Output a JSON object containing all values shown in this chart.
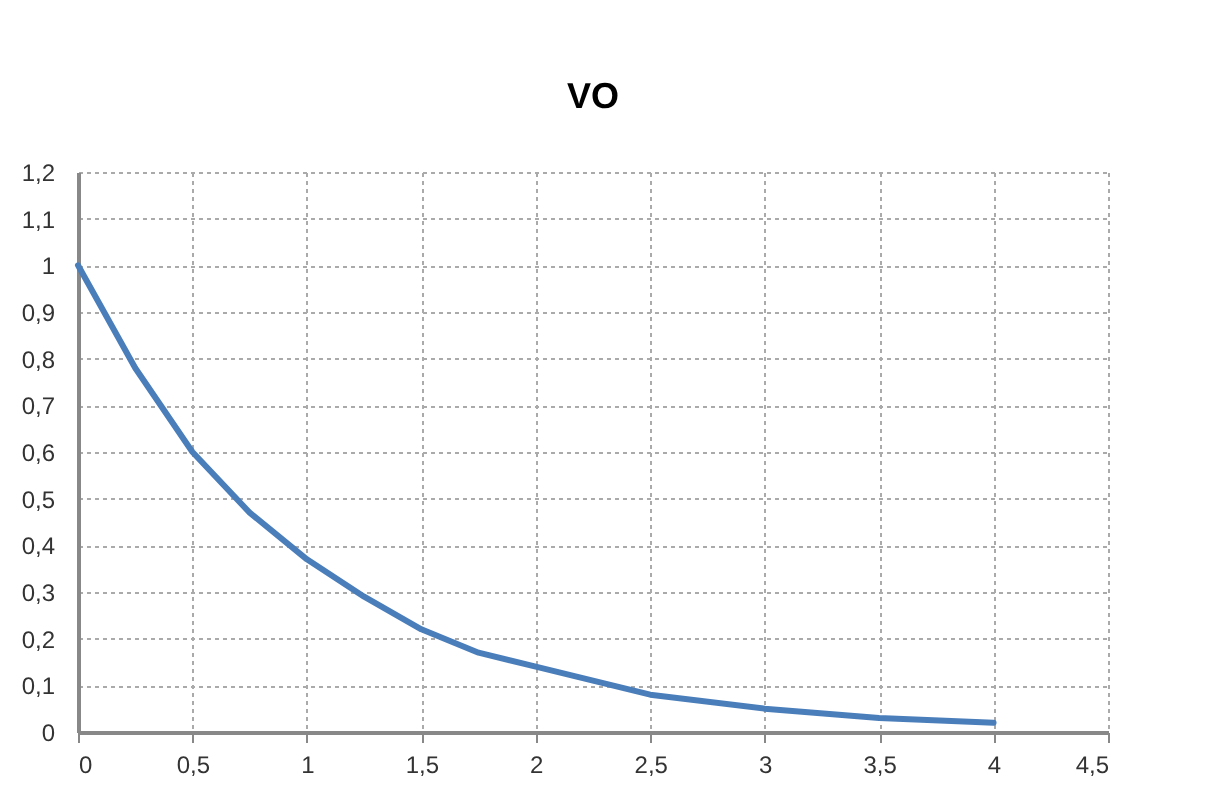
{
  "chart_data": {
    "type": "line",
    "title": "VO",
    "x": [
      0,
      0.25,
      0.5,
      0.75,
      1,
      1.25,
      1.5,
      1.75,
      2,
      2.5,
      3,
      3.5,
      4
    ],
    "series": [
      {
        "color": "#4a7ebb",
        "values": [
          1,
          0.78,
          0.6,
          0.47,
          0.37,
          0.29,
          0.22,
          0.17,
          0.14,
          0.08,
          0.05,
          0.03,
          0.02
        ]
      }
    ],
    "xlim": [
      0,
      4.5
    ],
    "xticks": [
      0,
      {
        "value": 0.5,
        "label": "0,5"
      },
      1,
      {
        "value": 1.5,
        "label": "1,5"
      },
      2,
      {
        "value": 2.5,
        "label": "2,5"
      },
      3,
      {
        "value": 3.5,
        "label": "3,5"
      },
      4,
      {
        "value": 4.5,
        "label": "4,5"
      }
    ],
    "ylim": [
      0,
      1.2
    ],
    "yticks": [
      0,
      {
        "value": 0.1,
        "label": "0,1"
      },
      {
        "value": 0.2,
        "label": "0,2"
      },
      {
        "value": 0.3,
        "label": "0,3"
      },
      {
        "value": 0.4,
        "label": "0,4"
      },
      {
        "value": 0.5,
        "label": "0,5"
      },
      {
        "value": 0.6,
        "label": "0,6"
      },
      {
        "value": 0.7,
        "label": "0,7"
      },
      {
        "value": 0.8,
        "label": "0,8"
      },
      {
        "value": 0.9,
        "label": "0,9"
      },
      1,
      {
        "value": 1.1,
        "label": "1,1"
      },
      {
        "value": 1.2,
        "label": "1,2"
      }
    ],
    "grid": true,
    "marker": "none",
    "line_style": "solid"
  }
}
